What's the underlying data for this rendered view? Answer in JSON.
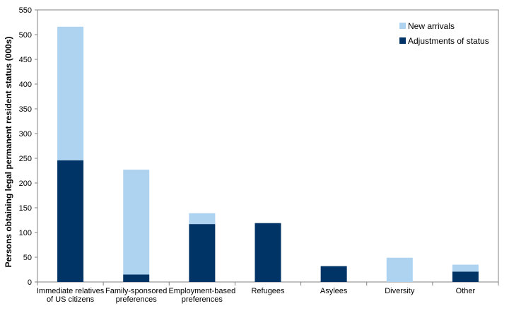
{
  "chart_data": {
    "type": "bar",
    "stacked": true,
    "categories": [
      [
        "Immediate relatives",
        "of US citizens"
      ],
      [
        "Family-sponsored",
        "preferences"
      ],
      [
        "Employment-based",
        "preferences"
      ],
      [
        "Refugees"
      ],
      [
        "Asylees"
      ],
      [
        "Diversity"
      ],
      [
        "Other"
      ]
    ],
    "series": [
      {
        "name": "Adjustments of status",
        "color": "#003466",
        "values": [
          246,
          15,
          117,
          119,
          32,
          0,
          21
        ]
      },
      {
        "name": "New arrivals",
        "color": "#aed3f0",
        "values": [
          270,
          212,
          22,
          0,
          0,
          49,
          14
        ]
      }
    ],
    "ylabel": "Persons obtaining legal permanent resident status (000s)",
    "xlabel": "",
    "ylim": [
      0,
      550
    ],
    "yticks": [
      0,
      50,
      100,
      150,
      200,
      250,
      300,
      350,
      400,
      450,
      500,
      550
    ],
    "grid": false,
    "legend_position": "top-right",
    "legend_order": [
      "New arrivals",
      "Adjustments of status"
    ]
  }
}
